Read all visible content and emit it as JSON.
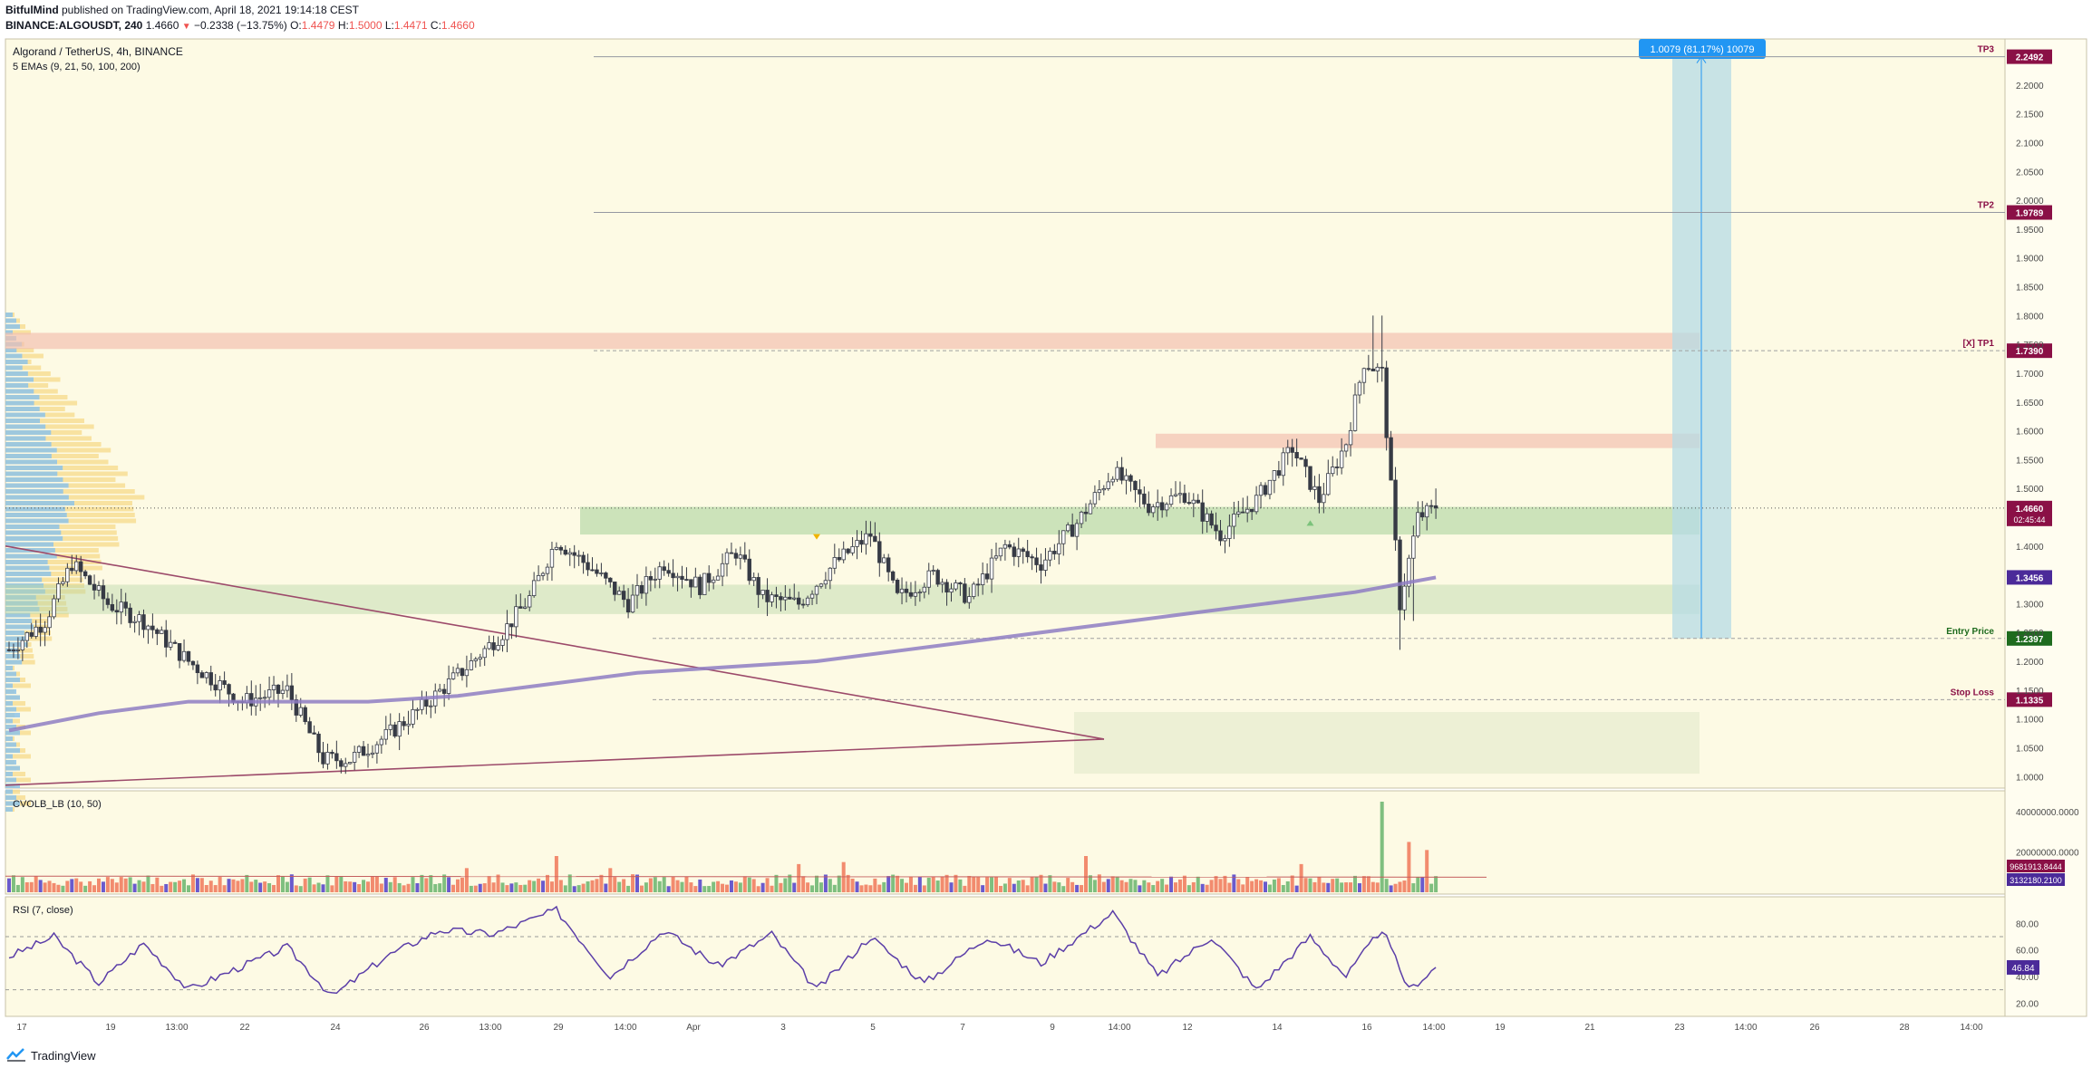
{
  "header": {
    "author": "BitfulMind",
    "published": "published on TradingView.com, April 18, 2021 19:14:18 CEST",
    "symbol": "BINANCE:ALGOUSDT, 240",
    "last": "1.4660",
    "change": "−0.2338 (−13.75%)",
    "open_label": "O:",
    "open": "1.4479",
    "high_label": "H:",
    "high": "1.5000",
    "low_label": "L:",
    "low": "1.4471",
    "close_label": "C:",
    "close": "1.4660"
  },
  "footer": {
    "brand": "TradingView"
  },
  "colors": {
    "background": "#fdfae4",
    "up_candle": "#ffffff",
    "down_candle": "#363a45",
    "ema200": "#8e7cc3",
    "trendline": "#9c4a6a",
    "green_zone": "#b7d8a8",
    "red_zone": "#f2c0b0",
    "target_box": "#b5dbe6",
    "target_label_bg": "#2196f3",
    "vol_up": "#7fbf7f",
    "vol_down": "#f28b6e",
    "vol_neutral": "#6a5acd",
    "rsi_line": "#5b3ea8",
    "tp_label_bg": "#8a1046",
    "entry_bg": "#1e6b1e",
    "ema_label_bg": "#4b2a99"
  },
  "chart_data": [
    {
      "type": "candlestick",
      "title": "Algorand / TetherUS, 4h, BINANCE",
      "subtitle": "5 EMAs (9, 21, 50, 100, 200)",
      "y_scale": "price (USDT)",
      "ylim": [
        0.98,
        2.28
      ],
      "y_ticks": [
        "2.2000",
        "2.1500",
        "2.1000",
        "2.0500",
        "2.0000",
        "1.9500",
        "1.9000",
        "1.8500",
        "1.8000",
        "1.7500",
        "1.7000",
        "1.6500",
        "1.6000",
        "1.5500",
        "1.5000",
        "1.4500",
        "1.4000",
        "1.3500",
        "1.3000",
        "1.2500",
        "1.2000",
        "1.1500",
        "1.1000",
        "1.0500",
        "1.0000"
      ],
      "x_ticks": [
        "17",
        "19",
        "13:00",
        "22",
        "24",
        "26",
        "13:00",
        "29",
        "14:00",
        "Apr",
        "3",
        "5",
        "7",
        "9",
        "14:00",
        "12",
        "14",
        "16",
        "14:00",
        "19",
        "21",
        "23",
        "14:00",
        "26",
        "28",
        "14:00"
      ],
      "candle_anchors": [
        {
          "i": 0,
          "price": 1.22
        },
        {
          "i": 8,
          "price": 1.27
        },
        {
          "i": 14,
          "price": 1.37
        },
        {
          "i": 22,
          "price": 1.3
        },
        {
          "i": 30,
          "price": 1.27
        },
        {
          "i": 40,
          "price": 1.2
        },
        {
          "i": 52,
          "price": 1.13
        },
        {
          "i": 62,
          "price": 1.15
        },
        {
          "i": 70,
          "price": 1.03
        },
        {
          "i": 76,
          "price": 1.03
        },
        {
          "i": 84,
          "price": 1.07
        },
        {
          "i": 92,
          "price": 1.12
        },
        {
          "i": 102,
          "price": 1.19
        },
        {
          "i": 110,
          "price": 1.25
        },
        {
          "i": 116,
          "price": 1.31
        },
        {
          "i": 122,
          "price": 1.41
        },
        {
          "i": 130,
          "price": 1.36
        },
        {
          "i": 138,
          "price": 1.3
        },
        {
          "i": 146,
          "price": 1.37
        },
        {
          "i": 154,
          "price": 1.33
        },
        {
          "i": 162,
          "price": 1.39
        },
        {
          "i": 168,
          "price": 1.31
        },
        {
          "i": 176,
          "price": 1.3
        },
        {
          "i": 184,
          "price": 1.37
        },
        {
          "i": 192,
          "price": 1.42
        },
        {
          "i": 198,
          "price": 1.31
        },
        {
          "i": 206,
          "price": 1.35
        },
        {
          "i": 214,
          "price": 1.31
        },
        {
          "i": 222,
          "price": 1.4
        },
        {
          "i": 230,
          "price": 1.37
        },
        {
          "i": 238,
          "price": 1.44
        },
        {
          "i": 246,
          "price": 1.53
        },
        {
          "i": 254,
          "price": 1.47
        },
        {
          "i": 262,
          "price": 1.49
        },
        {
          "i": 270,
          "price": 1.42
        },
        {
          "i": 278,
          "price": 1.48
        },
        {
          "i": 286,
          "price": 1.57
        },
        {
          "i": 292,
          "price": 1.48
        },
        {
          "i": 298,
          "price": 1.58
        },
        {
          "i": 302,
          "price": 1.72
        },
        {
          "i": 306,
          "price": 1.7
        },
        {
          "i": 310,
          "price": 1.3
        },
        {
          "i": 314,
          "price": 1.45
        },
        {
          "i": 318,
          "price": 1.466
        }
      ],
      "ema200": [
        {
          "i": 0,
          "price": 1.08
        },
        {
          "i": 20,
          "price": 1.11
        },
        {
          "i": 40,
          "price": 1.13
        },
        {
          "i": 60,
          "price": 1.13
        },
        {
          "i": 80,
          "price": 1.13
        },
        {
          "i": 100,
          "price": 1.14
        },
        {
          "i": 120,
          "price": 1.16
        },
        {
          "i": 140,
          "price": 1.18
        },
        {
          "i": 160,
          "price": 1.19
        },
        {
          "i": 180,
          "price": 1.2
        },
        {
          "i": 200,
          "price": 1.22
        },
        {
          "i": 220,
          "price": 1.24
        },
        {
          "i": 240,
          "price": 1.26
        },
        {
          "i": 260,
          "price": 1.28
        },
        {
          "i": 280,
          "price": 1.3
        },
        {
          "i": 300,
          "price": 1.32
        },
        {
          "i": 318,
          "price": 1.3456
        }
      ],
      "zones": [
        {
          "kind": "resistance",
          "from": 1.742,
          "to": 1.77
        },
        {
          "kind": "resistance",
          "from": 1.57,
          "to": 1.595
        },
        {
          "kind": "support",
          "from": 1.42,
          "to": 1.468
        },
        {
          "kind": "support",
          "from": 1.282,
          "to": 1.333
        },
        {
          "kind": "target-area",
          "from": 1.005,
          "to": 1.112
        }
      ],
      "levels": [
        {
          "name": "TP3",
          "price": 2.2492,
          "label": "2.2492"
        },
        {
          "name": "TP2",
          "price": 1.9789,
          "label": "1.9789"
        },
        {
          "name": "[X] TP1",
          "price": 1.739,
          "label": "1.7390"
        },
        {
          "name": "Entry Price",
          "price": 1.2397,
          "label": "1.2397"
        },
        {
          "name": "Stop Loss",
          "price": 1.1335,
          "label": "1.1335"
        }
      ],
      "last_price": {
        "value": "1.4660",
        "countdown": "02:45:44"
      },
      "ema200_label": "1.3456",
      "target_label": "1.0079 (81.17%) 10079",
      "triangle_markers": [
        {
          "i": 180,
          "price": 1.416,
          "dir": "down"
        },
        {
          "i": 290,
          "price": 1.44,
          "dir": "up"
        }
      ]
    },
    {
      "type": "bar",
      "title": "CVOLB_LB (10, 50)",
      "ylim": [
        0,
        45000000
      ],
      "y_ticks": [
        "40000000.0000",
        "20000000.0000"
      ],
      "values_label_1": "9681913.8444",
      "values_label_2": "3132180.2100",
      "spikes": [
        {
          "i": 102,
          "value": 12000000
        },
        {
          "i": 122,
          "value": 18000000
        },
        {
          "i": 134,
          "value": 12000000
        },
        {
          "i": 176,
          "value": 14000000
        },
        {
          "i": 186,
          "value": 15000000
        },
        {
          "i": 240,
          "value": 18000000
        },
        {
          "i": 288,
          "value": 14000000
        },
        {
          "i": 306,
          "value": 45000000
        },
        {
          "i": 312,
          "value": 25000000
        },
        {
          "i": 316,
          "value": 21000000
        }
      ]
    },
    {
      "type": "line",
      "title": "RSI (7, close)",
      "ylim": [
        10,
        100
      ],
      "y_ticks": [
        "80.00",
        "60.00",
        "40.00",
        "20.00"
      ],
      "last_label": "46.84",
      "bands": [
        70,
        30
      ],
      "values_anchor": [
        {
          "i": 0,
          "v": 55
        },
        {
          "i": 10,
          "v": 70
        },
        {
          "i": 20,
          "v": 35
        },
        {
          "i": 30,
          "v": 65
        },
        {
          "i": 40,
          "v": 30
        },
        {
          "i": 50,
          "v": 45
        },
        {
          "i": 62,
          "v": 62
        },
        {
          "i": 72,
          "v": 25
        },
        {
          "i": 84,
          "v": 55
        },
        {
          "i": 96,
          "v": 75
        },
        {
          "i": 108,
          "v": 72
        },
        {
          "i": 122,
          "v": 90
        },
        {
          "i": 134,
          "v": 40
        },
        {
          "i": 146,
          "v": 75
        },
        {
          "i": 158,
          "v": 48
        },
        {
          "i": 170,
          "v": 72
        },
        {
          "i": 180,
          "v": 30
        },
        {
          "i": 192,
          "v": 70
        },
        {
          "i": 204,
          "v": 35
        },
        {
          "i": 218,
          "v": 70
        },
        {
          "i": 230,
          "v": 50
        },
        {
          "i": 246,
          "v": 88
        },
        {
          "i": 256,
          "v": 40
        },
        {
          "i": 268,
          "v": 70
        },
        {
          "i": 278,
          "v": 30
        },
        {
          "i": 290,
          "v": 70
        },
        {
          "i": 298,
          "v": 40
        },
        {
          "i": 306,
          "v": 76
        },
        {
          "i": 312,
          "v": 30
        },
        {
          "i": 318,
          "v": 46.84
        }
      ]
    }
  ]
}
